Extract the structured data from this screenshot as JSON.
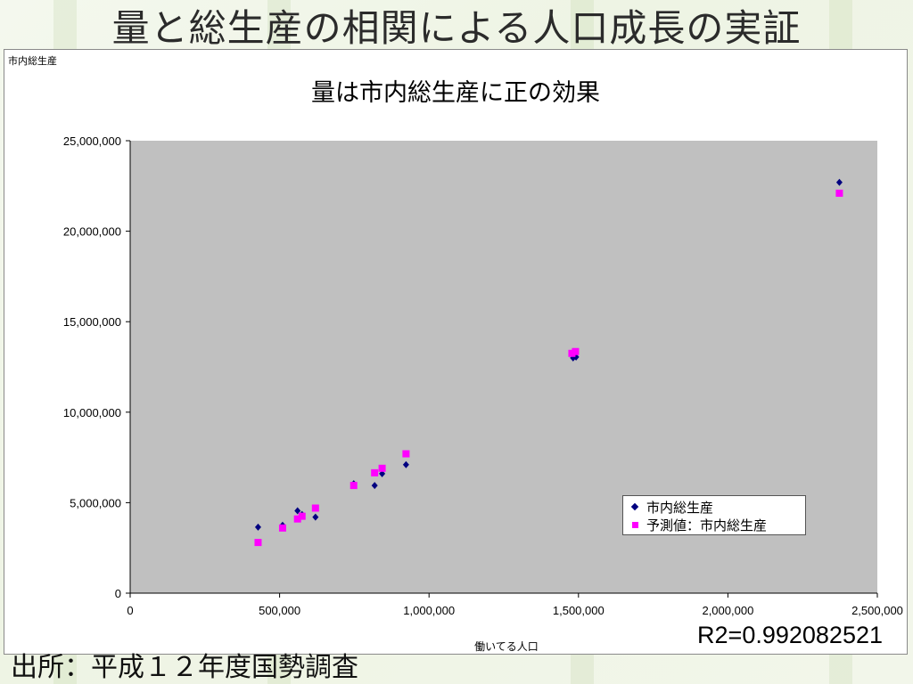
{
  "slide": {
    "title": "量と総生産の相関による人口成長の実証",
    "source": "出所：平成１２年度国勢調査",
    "r2": "R2=0.992082521"
  },
  "chart_data": {
    "type": "scatter",
    "title": "量は市内総生産に正の効果",
    "ylabel": "市内総生産",
    "xlabel": "働いてる人口",
    "xlim": [
      0,
      2500000
    ],
    "ylim": [
      0,
      25000000
    ],
    "x_ticks": [
      "0",
      "500,000",
      "1,000,000",
      "1,500,000",
      "2,000,000",
      "2,500,000"
    ],
    "y_ticks": [
      "0",
      "5,000,000",
      "10,000,000",
      "15,000,000",
      "20,000,000",
      "25,000,000"
    ],
    "grid": false,
    "legend_position": "bottom-right",
    "plot_background": "#c0c0c0",
    "series": [
      {
        "name": "市内総生産",
        "marker": "diamond",
        "color": "#000080",
        "points": [
          [
            428000,
            3650000
          ],
          [
            510000,
            3750000
          ],
          [
            560000,
            4550000
          ],
          [
            575000,
            4350000
          ],
          [
            620000,
            4200000
          ],
          [
            748000,
            6050000
          ],
          [
            818000,
            5950000
          ],
          [
            843000,
            6600000
          ],
          [
            923000,
            7100000
          ],
          [
            1482000,
            13000000
          ],
          [
            1492000,
            13050000
          ],
          [
            2373000,
            22700000
          ]
        ]
      },
      {
        "name": "予測値：市内総生産",
        "marker": "square",
        "color": "#ff00ff",
        "points": [
          [
            428000,
            2800000
          ],
          [
            510000,
            3600000
          ],
          [
            560000,
            4100000
          ],
          [
            575000,
            4250000
          ],
          [
            620000,
            4700000
          ],
          [
            748000,
            5950000
          ],
          [
            818000,
            6650000
          ],
          [
            843000,
            6900000
          ],
          [
            923000,
            7700000
          ],
          [
            1478000,
            13250000
          ],
          [
            1490000,
            13350000
          ],
          [
            2373000,
            22100000
          ]
        ]
      }
    ]
  }
}
